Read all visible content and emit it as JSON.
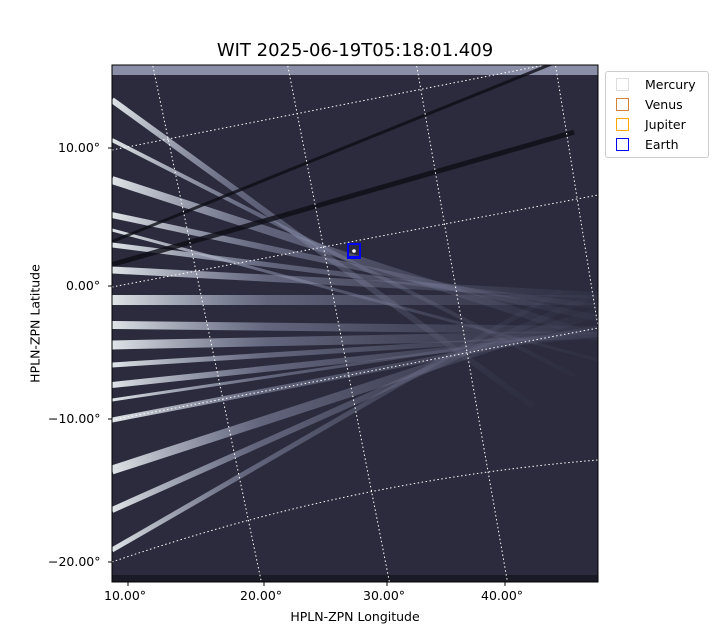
{
  "chart_data": {
    "type": "image",
    "title": "WIT 2025-06-19T05:18:01.409",
    "xlabel": "HPLN-ZPN Longitude",
    "ylabel": "HPLN-ZPN Latitude",
    "xticks": [
      "10.00°",
      "20.00°",
      "30.00°",
      "40.00°"
    ],
    "yticks": [
      "10.00°",
      "0.00°",
      "−10.00°",
      "−20.00°"
    ],
    "grid": true,
    "colormap": "bone",
    "legend": {
      "placement": "right-outside",
      "entries": [
        {
          "name": "Mercury",
          "color": "#dddddd"
        },
        {
          "name": "Venus",
          "color": "#d2823c"
        },
        {
          "name": "Jupiter",
          "color": "#ffa500"
        },
        {
          "name": "Earth",
          "color": "#0000ff"
        }
      ]
    },
    "markers": [
      {
        "name": "Earth",
        "lon": 27.4,
        "lat": 2.5,
        "color": "#0000ff"
      }
    ]
  }
}
